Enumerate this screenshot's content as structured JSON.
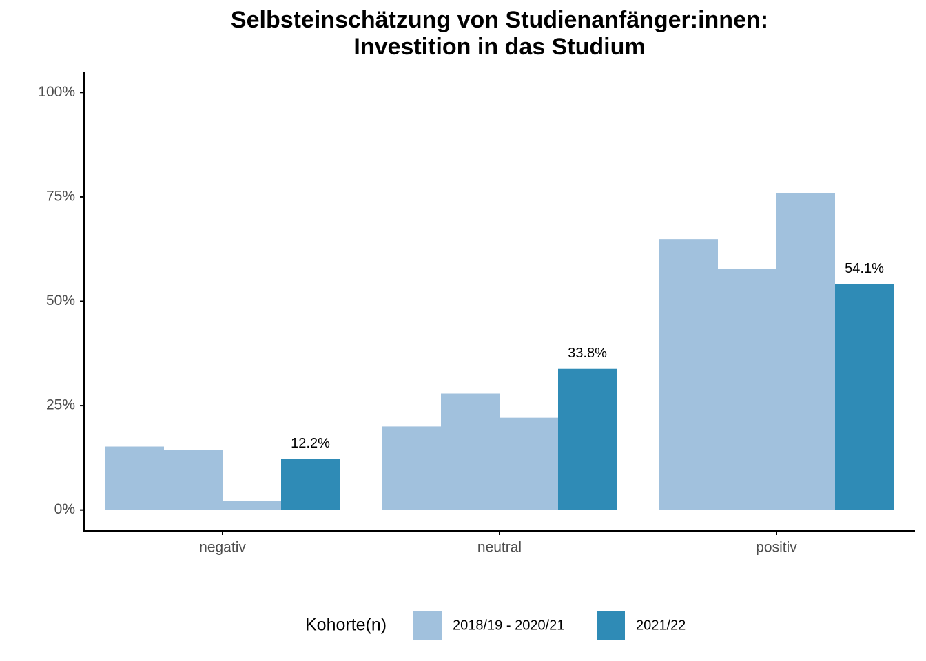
{
  "chart_data": {
    "type": "grouped_bar",
    "title": "Selbsteinschätzung von Studienanfänger:innen:",
    "subtitle": "Investition in das Studium",
    "categories": [
      "negativ",
      "neutral",
      "positiv"
    ],
    "legend_title": "Kohorte(n)",
    "legend_position": "bottom",
    "series": [
      {
        "name": "2018/19 - 2020/21",
        "color": "#a1c1dd",
        "values": [
          [
            15.2,
            14.4,
            2.1
          ],
          [
            20.0,
            27.9,
            22.1
          ],
          [
            64.9,
            57.8,
            75.9
          ]
        ]
      },
      {
        "name": "2021/22",
        "color": "#2f8bb6",
        "values": [
          12.2,
          33.8,
          54.1
        ],
        "value_labels": [
          "12.2%",
          "33.8%",
          "54.1%"
        ]
      }
    ],
    "ylim": [
      -5,
      105
    ],
    "yticks": [
      {
        "value": 0,
        "label": "0%"
      },
      {
        "value": 25,
        "label": "25%"
      },
      {
        "value": 50,
        "label": "50%"
      },
      {
        "value": 75,
        "label": "75%"
      },
      {
        "value": 100,
        "label": "100%"
      }
    ]
  }
}
